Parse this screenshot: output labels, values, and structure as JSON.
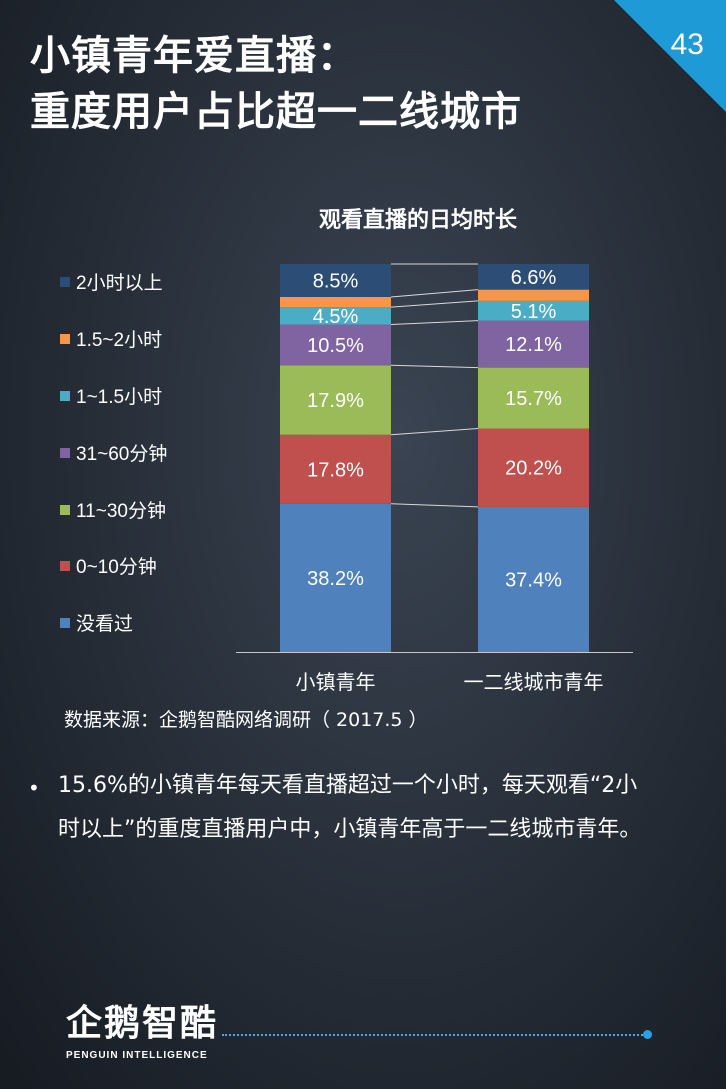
{
  "header": {
    "title_line1": "小镇青年爱直播：",
    "title_line2": "重度用户占比超一二线城市",
    "page_number": "43"
  },
  "chart_data": {
    "type": "bar",
    "stacked": true,
    "percent": true,
    "title": "观看直播的日均时长",
    "categories": [
      "小镇青年",
      "一二线城市青年"
    ],
    "series": [
      {
        "name": "没看过",
        "color": "#4f81bd",
        "values": [
          38.2,
          37.4
        ],
        "labels": [
          "38.2%",
          "37.4%"
        ]
      },
      {
        "name": "0~10分钟",
        "color": "#c0504d",
        "values": [
          17.8,
          20.2
        ],
        "labels": [
          "17.8%",
          "20.2%"
        ]
      },
      {
        "name": "11~30分钟",
        "color": "#9bbb59",
        "values": [
          17.9,
          15.7
        ],
        "labels": [
          "17.9%",
          "15.7%"
        ]
      },
      {
        "name": "31~60分钟",
        "color": "#8064a2",
        "values": [
          10.5,
          12.1
        ],
        "labels": [
          "10.5%",
          "12.1%"
        ]
      },
      {
        "name": "1~1.5小时",
        "color": "#4bacc6",
        "values": [
          4.5,
          5.1
        ],
        "labels": [
          "4.5%",
          "5.1%"
        ]
      },
      {
        "name": "1.5~2小时",
        "color": "#f79646",
        "values": [
          2.6,
          2.9
        ],
        "labels": [
          "",
          ""
        ]
      },
      {
        "name": "2小时以上",
        "color": "#2c4d75",
        "values": [
          8.5,
          6.6
        ],
        "labels": [
          "8.5%",
          "6.6%"
        ]
      }
    ],
    "legend_position": "left",
    "legend_order": [
      "2小时以上",
      "1.5~2小时",
      "1~1.5小时",
      "31~60分钟",
      "11~30分钟",
      "0~10分钟",
      "没看过"
    ]
  },
  "source": "数据来源：企鹅智酷网络调研（  2017.5 ）",
  "bullet": {
    "marker": "•",
    "text": "15.6%的小镇青年每天看直播超过一个小时，每天观看“2小时以上”的重度直播用户中，小镇青年高于一二线城市青年。"
  },
  "logo": {
    "name_cn": "企鹅智酷",
    "name_en": "PENGUIN INTELLIGENCE"
  }
}
